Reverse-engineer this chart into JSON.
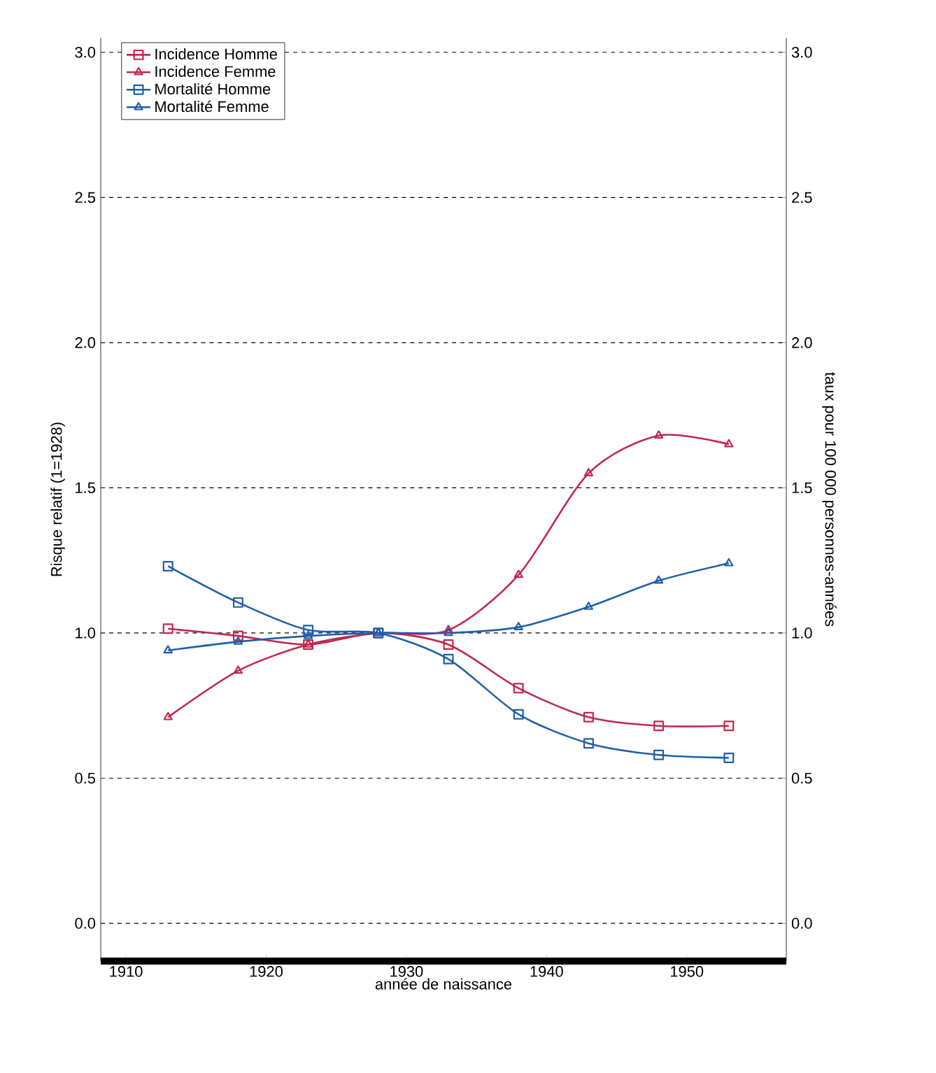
{
  "chart_data": {
    "type": "line",
    "xlabel": "année de naissance",
    "ylabel": "Risque relatif (1=1928)",
    "y2label": "taux pour 100 000 personnes-années",
    "x": [
      1913,
      1918,
      1923,
      1928,
      1933,
      1938,
      1943,
      1948,
      1953
    ],
    "series": [
      {
        "name": "Incidence Homme",
        "color": "#c0284e",
        "marker": "square",
        "values": [
          1.015,
          0.99,
          0.96,
          1.0,
          0.96,
          0.81,
          0.71,
          0.68,
          0.68
        ]
      },
      {
        "name": "Incidence Femme",
        "color": "#c0284e",
        "marker": "triangle",
        "values": [
          0.71,
          0.87,
          0.96,
          1.0,
          1.01,
          1.2,
          1.55,
          1.68,
          1.65
        ]
      },
      {
        "name": "Mortalité Homme",
        "color": "#1f5fa8",
        "marker": "square",
        "values": [
          1.23,
          1.105,
          1.01,
          1.0,
          0.91,
          0.72,
          0.62,
          0.58,
          0.57
        ]
      },
      {
        "name": "Mortalité Femme",
        "color": "#1f5fa8",
        "marker": "triangle",
        "values": [
          0.94,
          0.97,
          0.99,
          1.0,
          1.0,
          1.02,
          1.09,
          1.18,
          1.24
        ]
      }
    ],
    "xlim": [
      1908.2,
      1957.1
    ],
    "ylim": [
      -0.13,
      3.05
    ],
    "y2lim": [
      -0.13,
      3.05
    ],
    "xticks": [
      1910,
      1920,
      1930,
      1940,
      1950
    ],
    "yticks": [
      {
        "value": 0,
        "label": "0.0"
      },
      {
        "value": 0.5,
        "label": "0.5"
      },
      {
        "value": 1,
        "label": "1.0"
      },
      {
        "value": 1.5,
        "label": "1.5"
      },
      {
        "value": 2,
        "label": "2.0"
      },
      {
        "value": 2.5,
        "label": "2.5"
      },
      {
        "value": 3,
        "label": "3.0"
      }
    ],
    "y2ticks": [
      {
        "value": 0,
        "label": "0.0"
      },
      {
        "value": 0.5,
        "label": "0.5"
      },
      {
        "value": 1,
        "label": "1.0"
      },
      {
        "value": 1.5,
        "label": "1.5"
      },
      {
        "value": 2,
        "label": "2.0"
      },
      {
        "value": 2.5,
        "label": "2.5"
      },
      {
        "value": 3,
        "label": "3.0"
      }
    ],
    "grid": "y",
    "legend": "top left",
    "line_style": "solid"
  }
}
